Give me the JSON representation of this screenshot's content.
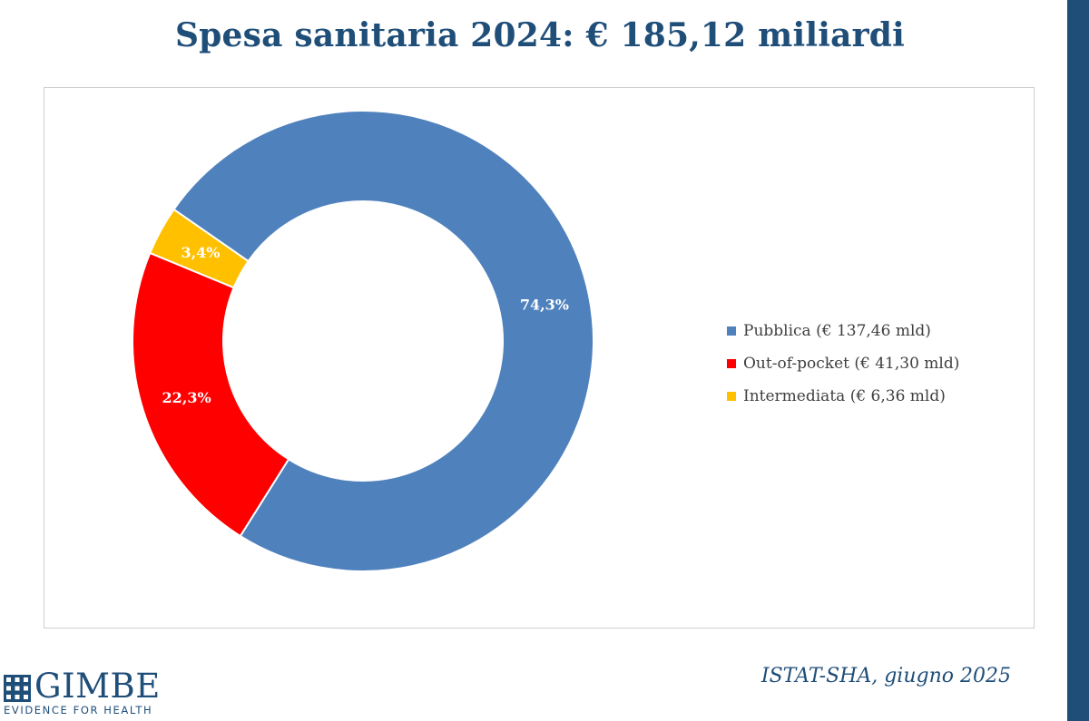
{
  "title": "Spesa sanitaria 2024: € 185,12 miliardi",
  "source": "ISTAT-SHA, giugno 2025",
  "logo": {
    "name": "GIMBE",
    "tagline": "EVIDENCE FOR HEALTH",
    "color": "#1f4e79"
  },
  "chart_data": {
    "type": "pie",
    "variant": "donut",
    "title": "Spesa sanitaria 2024: € 185,12 miliardi",
    "legend_position": "right",
    "slices": [
      {
        "name": "Pubblica",
        "legend": "Pubblica (€ 137,46 mld)",
        "value": 137.46,
        "percent": 74.3,
        "label": "74,3%",
        "color": "#4f81bd"
      },
      {
        "name": "Out-of-pocket",
        "legend": "Out-of-pocket (€ 41,30 mld)",
        "value": 41.3,
        "percent": 22.3,
        "label": "22,3%",
        "color": "#ff0000"
      },
      {
        "name": "Intermediata",
        "legend": "Intermediata (€ 6,36 mld)",
        "value": 6.36,
        "percent": 3.4,
        "label": "3,4%",
        "color": "#ffc000"
      }
    ]
  }
}
